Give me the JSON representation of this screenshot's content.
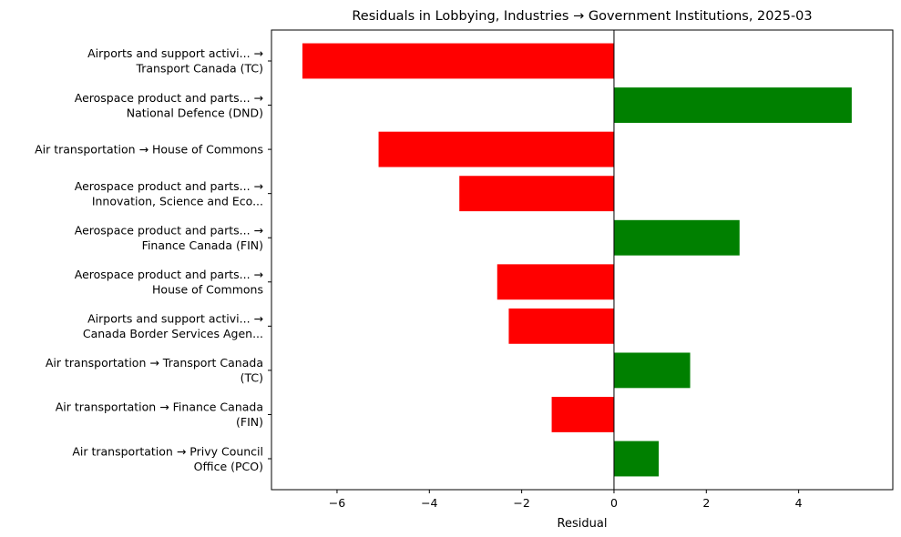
{
  "chart_data": {
    "type": "bar",
    "orientation": "horizontal",
    "title": "Residuals in Lobbying, Industries → Government Institutions, 2025-03",
    "xlabel": "Residual",
    "ylabel": "",
    "xlim": [
      -7.42,
      6.04
    ],
    "xticks": [
      -6,
      -4,
      -2,
      0,
      2,
      4
    ],
    "xtick_labels": [
      "−6",
      "−4",
      "−2",
      "0",
      "2",
      "4"
    ],
    "grid": false,
    "colors": {
      "positive": "#008000",
      "negative": "#ff0000",
      "zero_line": "#000000"
    },
    "categories": [
      [
        "Airports and support activi... →",
        "Transport Canada (TC)"
      ],
      [
        "Aerospace product and parts... →",
        "National Defence (DND)"
      ],
      [
        "Air transportation → House of Commons"
      ],
      [
        "Aerospace product and parts... →",
        "Innovation, Science and Eco..."
      ],
      [
        "Aerospace product and parts... →",
        "Finance Canada (FIN)"
      ],
      [
        "Aerospace product and parts... →",
        "House of Commons"
      ],
      [
        "Airports and support activi... →",
        "Canada Border Services Agen..."
      ],
      [
        "Air transportation → Transport Canada",
        "(TC)"
      ],
      [
        "Air transportation → Finance Canada",
        "(FIN)"
      ],
      [
        "Air transportation → Privy Council",
        "Office (PCO)"
      ]
    ],
    "values": [
      -6.75,
      5.15,
      -5.1,
      -3.35,
      2.72,
      -2.53,
      -2.28,
      1.65,
      -1.35,
      0.97
    ]
  }
}
